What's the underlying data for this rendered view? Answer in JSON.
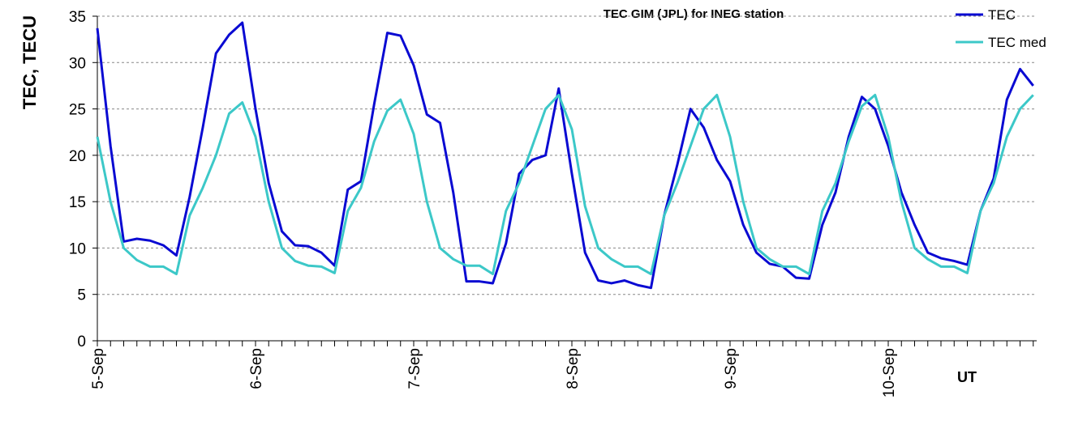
{
  "chart_data": {
    "type": "line",
    "title": "TEC GIM (JPL) for INEG station",
    "y_label": "TEC, TECU",
    "x_label": "UT",
    "categories": [
      "5-Sep",
      null,
      null,
      null,
      null,
      null,
      null,
      null,
      null,
      null,
      null,
      null,
      "6-Sep",
      null,
      null,
      null,
      null,
      null,
      null,
      null,
      null,
      null,
      null,
      null,
      "7-Sep",
      null,
      null,
      null,
      null,
      null,
      null,
      null,
      null,
      null,
      null,
      null,
      "8-Sep",
      null,
      null,
      null,
      null,
      null,
      null,
      null,
      null,
      null,
      null,
      null,
      "9-Sep",
      null,
      null,
      null,
      null,
      null,
      null,
      null,
      null,
      null,
      null,
      null,
      "10-Sep",
      null,
      null,
      null,
      null,
      null,
      null,
      null,
      null,
      null,
      null,
      null
    ],
    "series": [
      {
        "name": "TEC",
        "color": "#0a0ad2",
        "values": [
          33.7,
          21,
          10.7,
          11,
          10.8,
          10.3,
          9.2,
          15.5,
          23,
          31,
          33,
          34.3,
          25,
          17,
          11.8,
          10.3,
          10.2,
          9.5,
          8.1,
          16.3,
          17.2,
          25.5,
          33.2,
          32.9,
          29.7,
          24.4,
          23.5,
          16,
          6.4,
          6.4,
          6.2,
          10.5,
          18,
          19.5,
          20,
          27.2,
          18,
          9.5,
          6.5,
          6.2,
          6.5,
          6,
          5.7,
          13.5,
          19,
          25,
          23,
          19.5,
          17.2,
          12.5,
          9.5,
          8.3,
          8,
          6.8,
          6.7,
          12.5,
          16,
          22,
          26.3,
          25,
          21,
          16,
          12.5,
          9.5,
          8.9,
          8.6,
          8.2,
          14,
          17.5,
          26,
          29.3,
          27.5
        ]
      },
      {
        "name": "TEC med",
        "color": "#3cc8c8",
        "values": [
          22,
          15,
          10,
          8.7,
          8,
          8,
          7.2,
          13.5,
          16.5,
          20,
          24.5,
          25.7,
          22,
          15,
          10,
          8.6,
          8.1,
          8,
          7.3,
          14,
          16.5,
          21.5,
          24.8,
          26,
          22.3,
          15,
          10,
          8.8,
          8.1,
          8.1,
          7.2,
          14,
          17,
          21,
          25,
          26.5,
          22.8,
          14.5,
          10,
          8.8,
          8,
          8,
          7.2,
          13.5,
          17,
          21,
          25,
          26.5,
          22,
          15,
          10,
          8.8,
          8,
          8,
          7.2,
          14,
          17,
          21.5,
          25.3,
          26.5,
          22,
          15,
          10,
          8.8,
          8,
          8,
          7.3,
          14,
          17,
          22,
          25,
          26.5
        ]
      }
    ],
    "ylim": [
      0,
      35
    ],
    "yticks": [
      0,
      5,
      10,
      15,
      20,
      25,
      30,
      35
    ],
    "grid": true,
    "legend": "top-right"
  }
}
